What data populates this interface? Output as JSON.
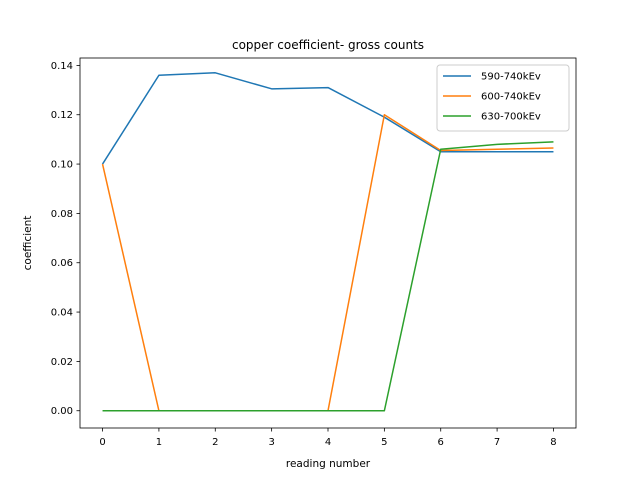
{
  "chart_data": {
    "type": "line",
    "title": "copper coefficient- gross counts",
    "xlabel": "reading number",
    "ylabel": "coefficient",
    "x": [
      0,
      1,
      2,
      3,
      4,
      5,
      6,
      7,
      8
    ],
    "xlim": [
      -0.4,
      8.4
    ],
    "ylim": [
      -0.007,
      0.143
    ],
    "xticks": [
      "0",
      "1",
      "2",
      "3",
      "4",
      "5",
      "6",
      "7",
      "8"
    ],
    "yticks": [
      "0.00",
      "0.02",
      "0.04",
      "0.06",
      "0.08",
      "0.10",
      "0.12",
      "0.14"
    ],
    "grid": false,
    "legend_position": "top-right",
    "series": [
      {
        "name": "590-740kEv",
        "color": "#1f77b4",
        "values": [
          0.1,
          0.136,
          0.137,
          0.1305,
          0.131,
          0.119,
          0.105,
          0.105,
          0.105
        ]
      },
      {
        "name": "600-740kEv",
        "color": "#ff7f0e",
        "values": [
          0.1,
          0.0,
          0.0,
          0.0,
          0.0,
          0.12,
          0.1055,
          0.106,
          0.1065
        ]
      },
      {
        "name": "630-700kEv",
        "color": "#2ca02c",
        "values": [
          0.0,
          0.0,
          0.0,
          0.0,
          0.0,
          0.0,
          0.106,
          0.108,
          0.109
        ]
      }
    ]
  }
}
